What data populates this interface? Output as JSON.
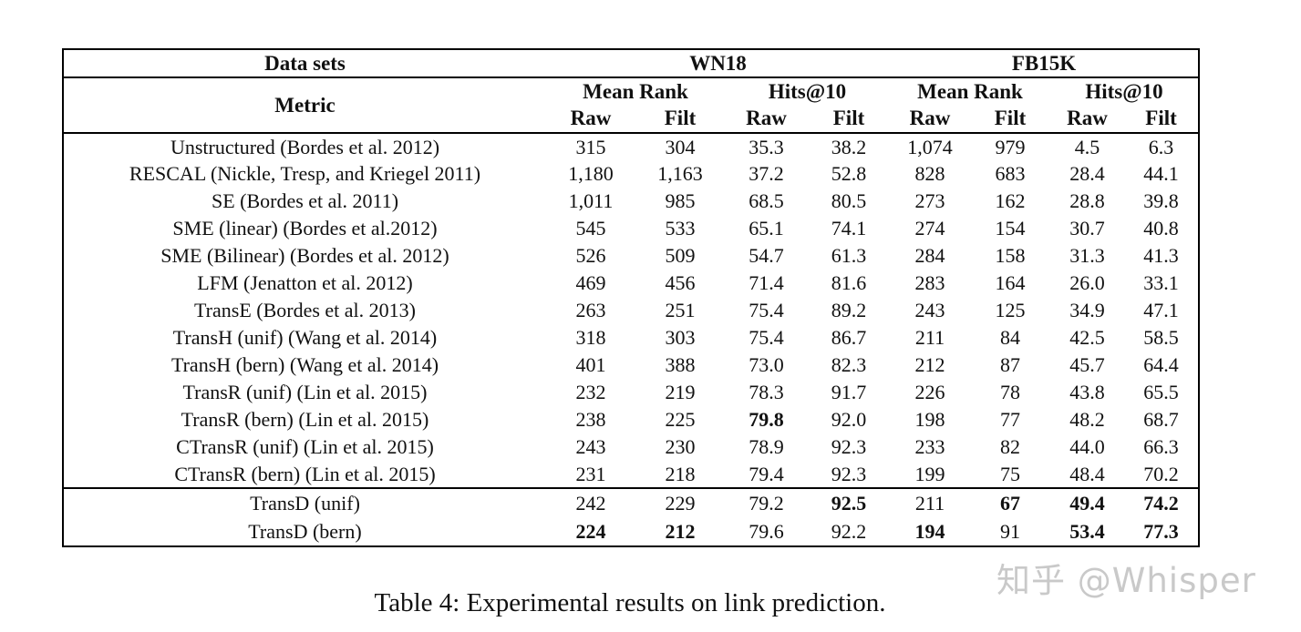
{
  "table": {
    "header": {
      "datasets_label": "Data sets",
      "metric_label": "Metric",
      "groups": [
        "WN18",
        "FB15K"
      ],
      "subgroups": [
        "Mean Rank",
        "Hits@10",
        "Mean Rank",
        "Hits@10"
      ],
      "rawfilt": [
        "Raw",
        "Filt",
        "Raw",
        "Filt",
        "Raw",
        "Filt",
        "Raw",
        "Filt"
      ]
    },
    "rows": [
      {
        "method": "Unstructured (Bordes et al. 2012)",
        "values": [
          "315",
          "304",
          "35.3",
          "38.2",
          "1,074",
          "979",
          "4.5",
          "6.3"
        ],
        "bold": []
      },
      {
        "method": "RESCAL (Nickle, Tresp, and Kriegel 2011)",
        "values": [
          "1,180",
          "1,163",
          "37.2",
          "52.8",
          "828",
          "683",
          "28.4",
          "44.1"
        ],
        "bold": []
      },
      {
        "method": "SE (Bordes et al. 2011)",
        "values": [
          "1,011",
          "985",
          "68.5",
          "80.5",
          "273",
          "162",
          "28.8",
          "39.8"
        ],
        "bold": []
      },
      {
        "method": "SME (linear) (Bordes et al.2012)",
        "values": [
          "545",
          "533",
          "65.1",
          "74.1",
          "274",
          "154",
          "30.7",
          "40.8"
        ],
        "bold": []
      },
      {
        "method": "SME (Bilinear) (Bordes et al. 2012)",
        "values": [
          "526",
          "509",
          "54.7",
          "61.3",
          "284",
          "158",
          "31.3",
          "41.3"
        ],
        "bold": []
      },
      {
        "method": "LFM (Jenatton et al. 2012)",
        "values": [
          "469",
          "456",
          "71.4",
          "81.6",
          "283",
          "164",
          "26.0",
          "33.1"
        ],
        "bold": []
      },
      {
        "method": "TransE (Bordes et al. 2013)",
        "values": [
          "263",
          "251",
          "75.4",
          "89.2",
          "243",
          "125",
          "34.9",
          "47.1"
        ],
        "bold": []
      },
      {
        "method": "TransH (unif) (Wang et al. 2014)",
        "values": [
          "318",
          "303",
          "75.4",
          "86.7",
          "211",
          "84",
          "42.5",
          "58.5"
        ],
        "bold": []
      },
      {
        "method": "TransH (bern) (Wang et al. 2014)",
        "values": [
          "401",
          "388",
          "73.0",
          "82.3",
          "212",
          "87",
          "45.7",
          "64.4"
        ],
        "bold": []
      },
      {
        "method": "TransR (unif) (Lin et al. 2015)",
        "values": [
          "232",
          "219",
          "78.3",
          "91.7",
          "226",
          "78",
          "43.8",
          "65.5"
        ],
        "bold": []
      },
      {
        "method": "TransR (bern) (Lin et al. 2015)",
        "values": [
          "238",
          "225",
          "79.8",
          "92.0",
          "198",
          "77",
          "48.2",
          "68.7"
        ],
        "bold": [
          2
        ]
      },
      {
        "method": "CTransR (unif) (Lin et al. 2015)",
        "values": [
          "243",
          "230",
          "78.9",
          "92.3",
          "233",
          "82",
          "44.0",
          "66.3"
        ],
        "bold": []
      },
      {
        "method": "CTransR (bern) (Lin et al. 2015)",
        "values": [
          "231",
          "218",
          "79.4",
          "92.3",
          "199",
          "75",
          "48.4",
          "70.2"
        ],
        "bold": []
      }
    ],
    "footer_rows": [
      {
        "method": "TransD (unif)",
        "values": [
          "242",
          "229",
          "79.2",
          "92.5",
          "211",
          "67",
          "49.4",
          "74.2"
        ],
        "bold": [
          3,
          5,
          6,
          7
        ]
      },
      {
        "method": "TransD (bern)",
        "values": [
          "224",
          "212",
          "79.6",
          "92.2",
          "194",
          "91",
          "53.4",
          "77.3"
        ],
        "bold": [
          0,
          1,
          4,
          6,
          7
        ]
      }
    ]
  },
  "caption": "Table 4: Experimental results on link prediction.",
  "watermark": "知乎 @Whisper",
  "colors": {
    "border": "#000000",
    "text": "#111111",
    "watermark": "#c9c9c9",
    "background": "#ffffff"
  }
}
